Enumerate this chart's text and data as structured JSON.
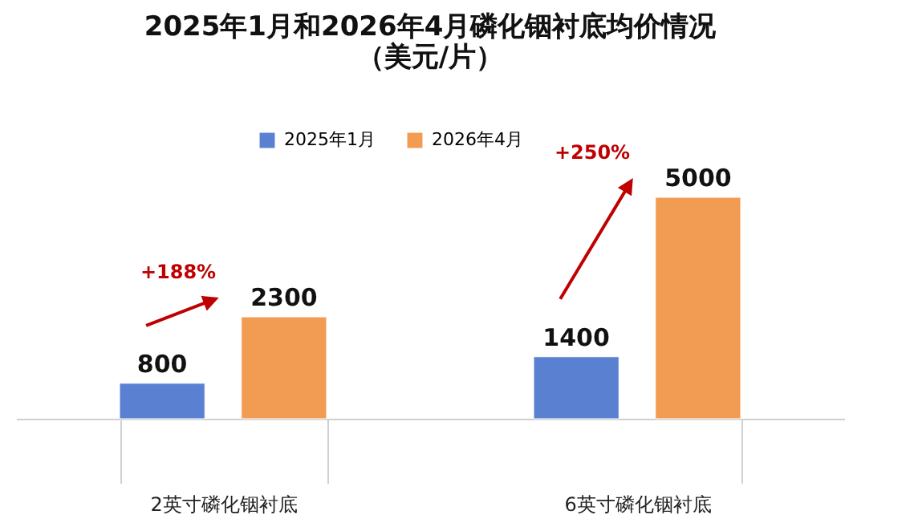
{
  "chart_data": {
    "type": "bar",
    "title": "2025年1月和2026年4月磷化铟衬底均价情况",
    "subtitle": "（美元/片）",
    "categories": [
      "2英寸磷化铟衬底",
      "6英寸磷化铟衬底"
    ],
    "series": [
      {
        "name": "2025年1月",
        "color": "#5a80d2",
        "values": [
          800,
          1400
        ]
      },
      {
        "name": "2026年4月",
        "color": "#f29b52",
        "values": [
          2300,
          5000
        ]
      }
    ],
    "data_labels": true,
    "legend": "top",
    "grid": false,
    "tick_labels": "x",
    "annotations": [
      "+188%",
      "+250%"
    ]
  }
}
